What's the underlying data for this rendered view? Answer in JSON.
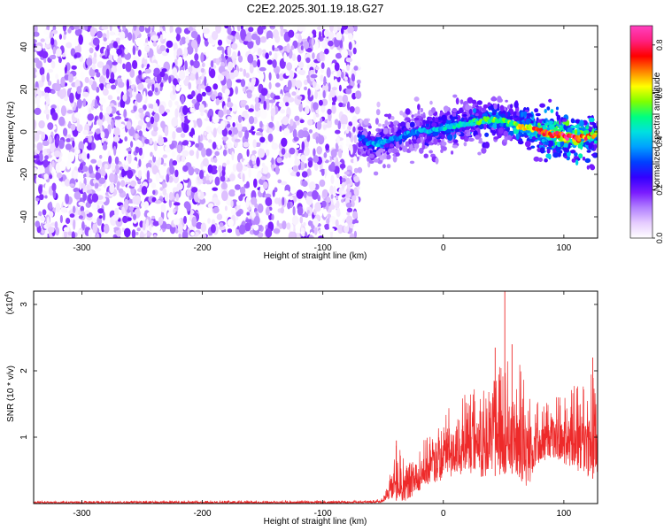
{
  "figure": {
    "title": "C2E2.2025.301.19.18.G27"
  },
  "chart_data": [
    {
      "type": "heatmap",
      "xlabel": "Height of straight line (km)",
      "ylabel": "Frequency (Hz)",
      "xlim": [
        -340,
        128
      ],
      "ylim": [
        -50,
        50
      ],
      "xticks": [
        -300,
        -200,
        -100,
        0,
        100
      ],
      "yticks": [
        -40,
        -20,
        0,
        20,
        40
      ],
      "noise_region": {
        "x_range": [
          -340,
          -70
        ],
        "y_range": [
          -50,
          50
        ],
        "description_level": "low-moderate"
      },
      "signal_ridge": {
        "x": [
          -70,
          -60,
          -50,
          -40,
          -30,
          -20,
          -10,
          0,
          10,
          20,
          30,
          40,
          50,
          60,
          70,
          80,
          90,
          100,
          110,
          120,
          128
        ],
        "freq": [
          -2,
          -6,
          -5,
          -3,
          -1,
          0,
          1,
          2,
          3,
          4,
          5,
          6,
          5,
          3,
          2,
          0,
          -1,
          -2,
          -3,
          -2,
          -1
        ],
        "amplitude": [
          0.3,
          0.38,
          0.4,
          0.35,
          0.36,
          0.38,
          0.4,
          0.42,
          0.45,
          0.45,
          0.5,
          0.52,
          0.5,
          0.55,
          0.65,
          0.75,
          0.8,
          0.8,
          0.82,
          0.7,
          0.55
        ]
      },
      "grid": false,
      "colorbar": {
        "label": "Normalized spectral amplitude",
        "range": [
          0.0,
          0.88
        ],
        "ticks": [
          "0.0",
          "0.2",
          "0.4",
          "0.6",
          "0.8"
        ],
        "tick_values": [
          0.0,
          0.2,
          0.4,
          0.6,
          0.8
        ],
        "colors": [
          "#ffffff",
          "#e6ccff",
          "#b280ff",
          "#7a1cff",
          "#3300ff",
          "#0040ff",
          "#00a0ff",
          "#00e0e0",
          "#00ff80",
          "#80ff00",
          "#ffff00",
          "#ff8000",
          "#ff0000",
          "#ff2080",
          "#ff40c0"
        ]
      }
    },
    {
      "type": "line",
      "xlabel": "Height of straight line (km)",
      "ylabel": "SNR (10 * v/v)",
      "yscale_label": "(x10",
      "yscale_exp": "4",
      "yscale_close": ")",
      "xlim": [
        -340,
        128
      ],
      "ylim": [
        0,
        3.2
      ],
      "xticks": [
        -300,
        -200,
        -100,
        0,
        100
      ],
      "yticks": [
        1,
        2,
        3
      ],
      "series": [
        {
          "color": "#ee2a2a",
          "envelope_x": [
            -340,
            -100,
            -60,
            -50,
            -45,
            -40,
            -35,
            -30,
            -20,
            -10,
            0,
            10,
            20,
            30,
            40,
            50,
            60,
            70,
            75,
            80,
            90,
            100,
            110,
            120,
            128
          ],
          "envelope_low": [
            0.0,
            0.0,
            0.01,
            0.02,
            0.05,
            0.05,
            0.02,
            0.05,
            0.2,
            0.3,
            0.35,
            0.4,
            0.45,
            0.4,
            0.4,
            0.45,
            0.45,
            0.2,
            0.5,
            0.6,
            0.7,
            0.6,
            0.5,
            0.4,
            0.35
          ],
          "envelope_high": [
            0.04,
            0.05,
            0.05,
            0.08,
            0.4,
            0.9,
            0.8,
            0.6,
            0.9,
            1.1,
            1.3,
            1.6,
            1.7,
            1.8,
            2.0,
            2.2,
            2.1,
            2.1,
            1.6,
            1.5,
            1.6,
            1.7,
            1.8,
            2.0,
            2.2
          ],
          "peaks": [
            {
              "x": -39,
              "y": 0.95
            },
            {
              "x": 43,
              "y": 2.35
            },
            {
              "x": 51,
              "y": 3.2
            },
            {
              "x": 57,
              "y": 2.4
            },
            {
              "x": 124,
              "y": 2.2
            }
          ]
        }
      ],
      "grid": false
    }
  ]
}
